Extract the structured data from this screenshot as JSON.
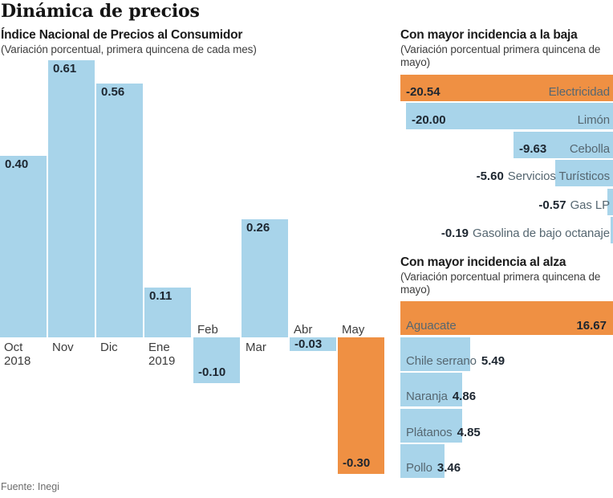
{
  "page": {
    "title": "Dinámica de precios",
    "source": "Fuente: Inegi"
  },
  "colors": {
    "bar_blue": "#a8d4ea",
    "bar_orange": "#ef9043",
    "value_text": "#1d2630",
    "category_text": "#566771"
  },
  "chart_data": [
    {
      "id": "inpc",
      "type": "bar",
      "orientation": "vertical",
      "title": "Índice Nacional de Precios al Consumidor",
      "subtitle": "(Variación porcentual, primera quincena de cada mes)",
      "categories": [
        "Oct 2018",
        "Nov",
        "Dic",
        "Ene 2019",
        "Feb",
        "Mar",
        "Abr",
        "May"
      ],
      "category_lines": [
        [
          "Oct",
          "2018"
        ],
        [
          "Nov"
        ],
        [
          "Dic"
        ],
        [
          "Ene",
          "2019"
        ],
        [
          "Feb"
        ],
        [
          "Mar"
        ],
        [
          "Abr"
        ],
        [
          "May"
        ]
      ],
      "values": [
        0.4,
        0.61,
        0.56,
        0.11,
        -0.1,
        0.26,
        -0.03,
        -0.3
      ],
      "value_labels": [
        "0.40",
        "0.61",
        "0.56",
        "0.11",
        "-0.10",
        "0.26",
        "-0.03",
        "-0.30"
      ],
      "highlight_index": 7,
      "ylim": [
        -0.35,
        0.65
      ],
      "grid": false,
      "legend": "none"
    },
    {
      "id": "baja",
      "type": "bar",
      "orientation": "horizontal",
      "anchor": "right",
      "title": "Con mayor incidencia a la baja",
      "subtitle_lines": [
        "(Variación porcentual primera quincena de",
        "mayo)"
      ],
      "categories": [
        "Electricidad",
        "Limón",
        "Cebolla",
        "Servicios Turísticos",
        "Gas LP",
        "Gasolina de bajo octanaje"
      ],
      "values": [
        -20.54,
        -20.0,
        -9.63,
        -5.6,
        -0.57,
        -0.19
      ],
      "value_labels": [
        "-20.54",
        "-20.00",
        "-9.63",
        "-5.60",
        "-0.57",
        "-0.19"
      ],
      "highlight_index": 0,
      "xlim": [
        -20.54,
        0
      ],
      "grid": false,
      "legend": "none"
    },
    {
      "id": "alza",
      "type": "bar",
      "orientation": "horizontal",
      "anchor": "left",
      "title": "Con mayor incidencia al alza",
      "subtitle_lines": [
        "(Variación porcentual primera quincena de",
        "mayo)"
      ],
      "categories": [
        "Aguacate",
        "Chile serrano",
        "Naranja",
        "Plátanos",
        "Pollo"
      ],
      "values": [
        16.67,
        5.49,
        4.86,
        4.85,
        3.46
      ],
      "value_labels": [
        "16.67",
        "5.49",
        "4.86",
        "4.85",
        "3.46"
      ],
      "highlight_index": 0,
      "xlim": [
        0,
        16.67
      ],
      "grid": false,
      "legend": "none"
    }
  ]
}
